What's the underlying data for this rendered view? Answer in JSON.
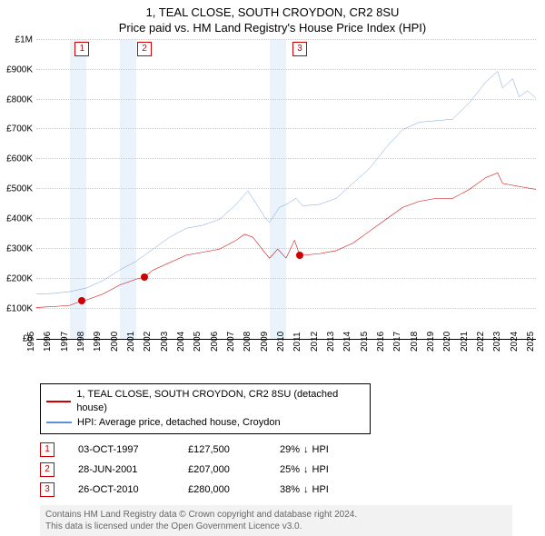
{
  "title": {
    "line1": "1, TEAL CLOSE, SOUTH CROYDON, CR2 8SU",
    "line2": "Price paid vs. HM Land Registry's House Price Index (HPI)"
  },
  "chart": {
    "type": "line",
    "background_color": "#ffffff",
    "grid_color": "#cccccc",
    "x": {
      "min": 1995,
      "max": 2025,
      "ticks": [
        1995,
        1996,
        1997,
        1998,
        1999,
        2000,
        2001,
        2002,
        2003,
        2004,
        2005,
        2006,
        2007,
        2008,
        2009,
        2010,
        2011,
        2012,
        2013,
        2014,
        2015,
        2016,
        2017,
        2018,
        2019,
        2020,
        2021,
        2022,
        2023,
        2024,
        2025
      ],
      "label_fontsize": 10
    },
    "y": {
      "min": 0,
      "max": 1000000,
      "ticks": [
        {
          "v": 0,
          "label": "£0"
        },
        {
          "v": 100000,
          "label": "£100K"
        },
        {
          "v": 200000,
          "label": "£200K"
        },
        {
          "v": 300000,
          "label": "£300K"
        },
        {
          "v": 400000,
          "label": "£400K"
        },
        {
          "v": 500000,
          "label": "£500K"
        },
        {
          "v": 600000,
          "label": "£600K"
        },
        {
          "v": 700000,
          "label": "£700K"
        },
        {
          "v": 800000,
          "label": "£800K"
        },
        {
          "v": 900000,
          "label": "£900K"
        },
        {
          "v": 1000000,
          "label": "£1M"
        }
      ],
      "label_fontsize": 10
    },
    "shaded_bands": [
      {
        "from": 1997,
        "to": 1998,
        "color": "#eaf3fb"
      },
      {
        "from": 2000,
        "to": 2001,
        "color": "#eaf3fb"
      },
      {
        "from": 2009,
        "to": 2010,
        "color": "#eaf3fb"
      }
    ],
    "series": [
      {
        "name": "price_paid",
        "label": "1, TEAL CLOSE, SOUTH CROYDON, CR2 8SU (detached house)",
        "color": "#cc0000",
        "line_width": 1.8,
        "data": [
          [
            1995,
            105000
          ],
          [
            1996,
            108000
          ],
          [
            1997,
            112000
          ],
          [
            1997.75,
            127500
          ],
          [
            1998,
            130000
          ],
          [
            1999,
            150000
          ],
          [
            2000,
            180000
          ],
          [
            2001,
            200000
          ],
          [
            2001.49,
            207000
          ],
          [
            2002,
            230000
          ],
          [
            2003,
            255000
          ],
          [
            2004,
            280000
          ],
          [
            2005,
            290000
          ],
          [
            2006,
            300000
          ],
          [
            2007,
            330000
          ],
          [
            2007.5,
            350000
          ],
          [
            2008,
            340000
          ],
          [
            2008.7,
            290000
          ],
          [
            2009,
            270000
          ],
          [
            2009.5,
            300000
          ],
          [
            2010,
            270000
          ],
          [
            2010.5,
            330000
          ],
          [
            2010.82,
            280000
          ],
          [
            2011,
            280000
          ],
          [
            2012,
            285000
          ],
          [
            2013,
            295000
          ],
          [
            2014,
            320000
          ],
          [
            2015,
            360000
          ],
          [
            2016,
            400000
          ],
          [
            2017,
            440000
          ],
          [
            2018,
            460000
          ],
          [
            2019,
            470000
          ],
          [
            2020,
            470000
          ],
          [
            2021,
            500000
          ],
          [
            2022,
            540000
          ],
          [
            2022.7,
            555000
          ],
          [
            2023,
            520000
          ],
          [
            2024,
            510000
          ],
          [
            2025,
            500000
          ]
        ]
      },
      {
        "name": "hpi",
        "label": "HPI: Average price, detached house, Croydon",
        "color": "#5b8fd6",
        "line_width": 1.4,
        "data": [
          [
            1995,
            150000
          ],
          [
            1996,
            152000
          ],
          [
            1997,
            158000
          ],
          [
            1998,
            170000
          ],
          [
            1999,
            195000
          ],
          [
            2000,
            230000
          ],
          [
            2001,
            260000
          ],
          [
            2002,
            300000
          ],
          [
            2003,
            340000
          ],
          [
            2004,
            370000
          ],
          [
            2005,
            380000
          ],
          [
            2006,
            400000
          ],
          [
            2007,
            450000
          ],
          [
            2007.7,
            495000
          ],
          [
            2008,
            470000
          ],
          [
            2008.8,
            400000
          ],
          [
            2009,
            390000
          ],
          [
            2009.6,
            440000
          ],
          [
            2010,
            450000
          ],
          [
            2010.6,
            470000
          ],
          [
            2011,
            445000
          ],
          [
            2012,
            450000
          ],
          [
            2013,
            470000
          ],
          [
            2014,
            520000
          ],
          [
            2015,
            570000
          ],
          [
            2016,
            640000
          ],
          [
            2017,
            700000
          ],
          [
            2018,
            725000
          ],
          [
            2019,
            730000
          ],
          [
            2020,
            735000
          ],
          [
            2021,
            790000
          ],
          [
            2022,
            860000
          ],
          [
            2022.7,
            895000
          ],
          [
            2023,
            840000
          ],
          [
            2023.6,
            870000
          ],
          [
            2024,
            810000
          ],
          [
            2024.5,
            830000
          ],
          [
            2025,
            805000
          ]
        ]
      }
    ],
    "markers": [
      {
        "n": "1",
        "x": 1997.75,
        "y": 127500
      },
      {
        "n": "2",
        "x": 2001.49,
        "y": 207000
      },
      {
        "n": "3",
        "x": 2010.82,
        "y": 280000
      }
    ],
    "marker_box_color": "#cc0000"
  },
  "legend": {
    "border_color": "#000000",
    "fontsize": 11
  },
  "sales": [
    {
      "n": "1",
      "date": "03-OCT-1997",
      "price": "£127,500",
      "delta_pct": "29%",
      "delta_dir": "down",
      "delta_label": "HPI"
    },
    {
      "n": "2",
      "date": "28-JUN-2001",
      "price": "£207,000",
      "delta_pct": "25%",
      "delta_dir": "down",
      "delta_label": "HPI"
    },
    {
      "n": "3",
      "date": "26-OCT-2010",
      "price": "£280,000",
      "delta_pct": "38%",
      "delta_dir": "down",
      "delta_label": "HPI"
    }
  ],
  "footer": {
    "line1": "Contains HM Land Registry data © Crown copyright and database right 2024.",
    "line2": "This data is licensed under the Open Government Licence v3.0.",
    "bg": "#f2f2f2",
    "color": "#666666"
  }
}
